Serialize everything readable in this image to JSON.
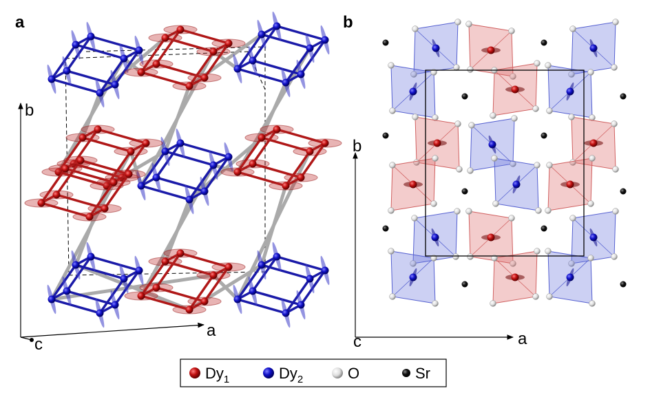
{
  "panels": [
    {
      "label": "a",
      "axes": {
        "vertical": "b",
        "depth": "c",
        "horizontal": "a"
      }
    },
    {
      "label": "b",
      "axes": {
        "vertical": "b",
        "depth": "c",
        "horizontal": "a"
      }
    }
  ],
  "legend": [
    {
      "symbol": "Dy",
      "subscript": "1"
    },
    {
      "symbol": "Dy",
      "subscript": "2"
    },
    {
      "symbol": "O"
    },
    {
      "symbol": "Sr"
    }
  ]
}
